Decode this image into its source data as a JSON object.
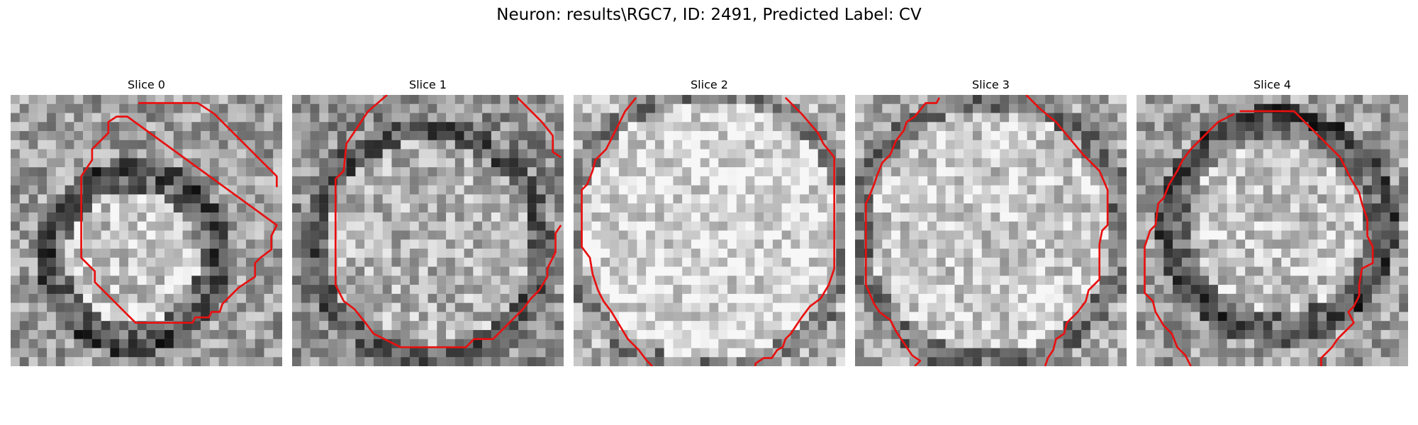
{
  "figure": {
    "title": "Neuron: results\\RGC7, ID: 2491, Predicted Label: CV"
  },
  "slices": [
    {
      "label": "Slice 0"
    },
    {
      "label": "Slice 1"
    },
    {
      "label": "Slice 2"
    },
    {
      "label": "Slice 3"
    },
    {
      "label": "Slice 4"
    }
  ],
  "colors": {
    "contour": "#e81010",
    "background": "#ffffff"
  }
}
